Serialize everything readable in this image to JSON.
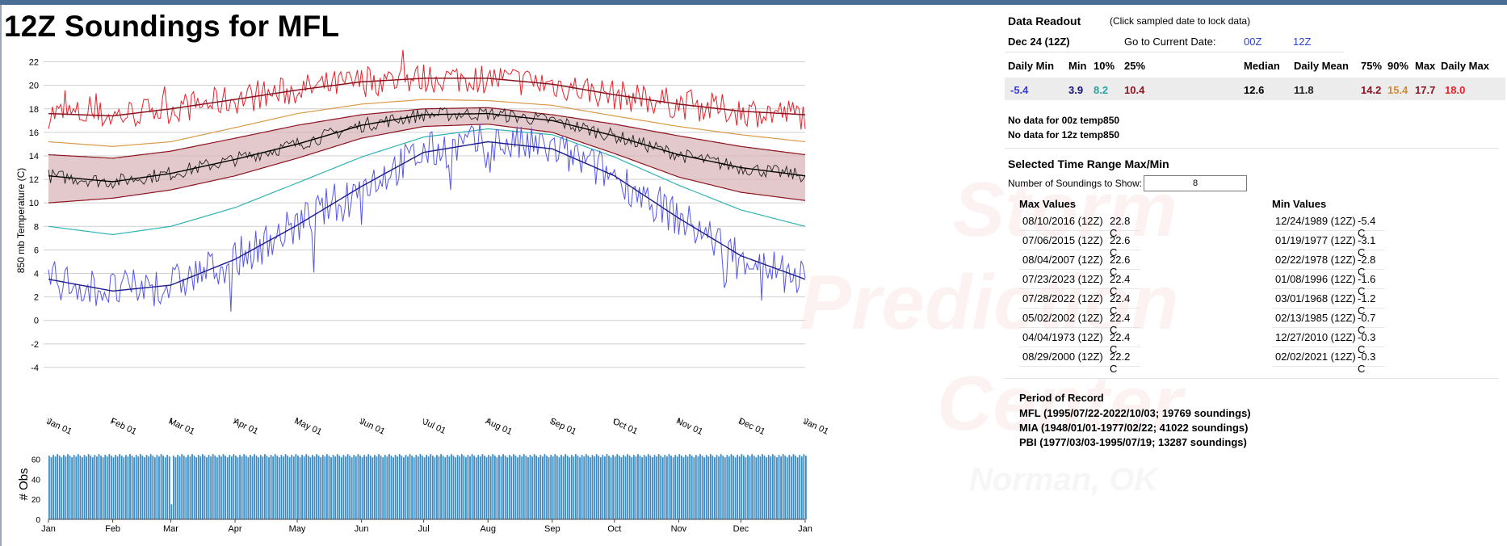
{
  "title": "12Z Soundings for MFL",
  "watermark": {
    "lines": [
      "Storm",
      "Prediction",
      "Center"
    ],
    "sub": "Norman, OK"
  },
  "colors": {
    "record_max": "#e8202a",
    "percentile_90": "#d99a4a",
    "band_fill": "#d7b2b6",
    "band_edge": "#8b1420",
    "mean": "#000000",
    "observed": "#222222",
    "percentile_10": "#2fb3b3",
    "record_min": "#5656e8",
    "min_smooth": "#1c1c8c",
    "obs_bars": "#3a8ac4"
  },
  "chart_data": [
    {
      "type": "line",
      "title": "",
      "ylabel": "850 mb Temperature (C)",
      "xlabel": "",
      "ylim": [
        -6,
        23
      ],
      "yticks": [
        -4,
        -2,
        0,
        2,
        4,
        6,
        8,
        10,
        12,
        14,
        16,
        18,
        20,
        22
      ],
      "grid": true,
      "x_ticks": [
        "Jan 01",
        "Feb 01",
        "Mar 01",
        "Apr 01",
        "May 01",
        "Jun 01",
        "Jul 01",
        "Aug 01",
        "Sep 01",
        "Oct 01",
        "Nov 01",
        "Dec 01",
        "Jan 01"
      ],
      "x_tick_days": [
        1,
        32,
        60,
        91,
        121,
        152,
        182,
        213,
        244,
        274,
        305,
        335,
        366
      ],
      "smooth_series": {
        "doy": [
          1,
          32,
          60,
          91,
          121,
          152,
          182,
          213,
          244,
          274,
          305,
          335,
          366
        ],
        "record_max_smooth": [
          17.6,
          17.4,
          18.0,
          18.8,
          19.6,
          20.3,
          20.6,
          20.6,
          20.1,
          19.2,
          18.4,
          17.8,
          17.5
        ],
        "percentile_90": [
          15.2,
          14.8,
          15.2,
          16.4,
          17.6,
          18.4,
          18.8,
          18.7,
          18.3,
          17.4,
          16.5,
          15.8,
          15.2
        ],
        "percentile_75": [
          14.1,
          13.8,
          14.4,
          15.5,
          16.6,
          17.5,
          18.0,
          18.1,
          17.5,
          16.7,
          15.7,
          14.8,
          14.1
        ],
        "mean": [
          12.3,
          11.8,
          12.5,
          13.7,
          15.0,
          16.6,
          17.5,
          17.6,
          17.0,
          15.7,
          14.1,
          13.0,
          12.3
        ],
        "percentile_25": [
          10.0,
          10.4,
          11.1,
          12.3,
          13.8,
          15.5,
          16.5,
          16.7,
          16.0,
          14.2,
          12.2,
          10.9,
          10.2
        ],
        "percentile_10": [
          8.0,
          7.3,
          8.0,
          9.6,
          11.7,
          13.9,
          15.6,
          16.3,
          15.8,
          13.9,
          11.5,
          9.4,
          8.0
        ],
        "record_min_smooth": [
          3.5,
          2.5,
          3.0,
          5.2,
          8.1,
          11.4,
          14.3,
          15.2,
          14.6,
          12.3,
          8.7,
          5.5,
          3.5
        ]
      },
      "daily_noise": {
        "record_max": 1.3,
        "observed": 0.6,
        "record_min": 1.7
      }
    },
    {
      "type": "bar",
      "title": "",
      "ylabel": "# Obs",
      "ylim": [
        0,
        70
      ],
      "yticks": [
        0,
        20,
        40,
        60
      ],
      "x_ticks": [
        "Jan",
        "Feb",
        "Mar",
        "Apr",
        "May",
        "Jun",
        "Jul",
        "Aug",
        "Sep",
        "Oct",
        "Nov",
        "Dec",
        "Jan"
      ],
      "typical_count": 65,
      "low_days": {
        "60": 15
      }
    }
  ],
  "readout": {
    "title": "Data Readout",
    "hint": "(Click sampled date to lock data)",
    "date": "Dec 24 (12Z)",
    "goto_label": "Go to Current Date:",
    "link_00z": "00Z",
    "link_12z": "12Z",
    "headers": [
      "Daily Min",
      "Min",
      "10%",
      "25%",
      "Median",
      "Daily Mean",
      "75%",
      "90%",
      "Max",
      "Daily Max"
    ],
    "values": [
      {
        "v": "-5.4",
        "color": "#3a3ad6"
      },
      {
        "v": "3.9",
        "color": "#12127a"
      },
      {
        "v": "8.2",
        "color": "#23a4a4"
      },
      {
        "v": "10.4",
        "color": "#8b1420"
      },
      {
        "v": "12.6",
        "color": "#000000"
      },
      {
        "v": "11.8",
        "color": "#222222"
      },
      {
        "v": "14.2",
        "color": "#8b1420"
      },
      {
        "v": "15.4",
        "color": "#d08a34"
      },
      {
        "v": "17.7",
        "color": "#8b1420"
      },
      {
        "v": "18.0",
        "color": "#e8202a"
      }
    ]
  },
  "no_data": [
    "No data for 00z temp850",
    "No data for 12z temp850"
  ],
  "selected": {
    "title": "Selected Time Range Max/Min",
    "count_label": "Number of Soundings to Show:",
    "count_value": "8",
    "max_title": "Max Values",
    "min_title": "Min Values",
    "max_rows": [
      {
        "date": "08/10/2016 (12Z)",
        "value": "22.8 C"
      },
      {
        "date": "07/06/2015 (12Z)",
        "value": "22.6 C"
      },
      {
        "date": "08/04/2007 (12Z)",
        "value": "22.6 C"
      },
      {
        "date": "07/23/2023 (12Z)",
        "value": "22.4 C"
      },
      {
        "date": "07/28/2022 (12Z)",
        "value": "22.4 C"
      },
      {
        "date": "05/02/2002 (12Z)",
        "value": "22.4 C"
      },
      {
        "date": "04/04/1973 (12Z)",
        "value": "22.4 C"
      },
      {
        "date": "08/29/2000 (12Z)",
        "value": "22.2 C"
      }
    ],
    "min_rows": [
      {
        "date": "12/24/1989 (12Z)",
        "value": "-5.4 C"
      },
      {
        "date": "01/19/1977 (12Z)",
        "value": "-3.1 C"
      },
      {
        "date": "02/22/1978 (12Z)",
        "value": "-2.8 C"
      },
      {
        "date": "01/08/1996 (12Z)",
        "value": "-1.6 C"
      },
      {
        "date": "03/01/1968 (12Z)",
        "value": "-1.2 C"
      },
      {
        "date": "02/13/1985 (12Z)",
        "value": "-0.7 C"
      },
      {
        "date": "12/27/2010 (12Z)",
        "value": "-0.3 C"
      },
      {
        "date": "02/02/2021 (12Z)",
        "value": "-0.3 C"
      }
    ]
  },
  "period_of_record": {
    "title": "Period of Record",
    "lines": [
      "MFL (1995/07/22-2022/10/03; 19769 soundings)",
      "MIA (1948/01/01-1977/02/22; 41022 soundings)",
      "PBI (1977/03/03-1995/07/19; 13287 soundings)"
    ]
  }
}
